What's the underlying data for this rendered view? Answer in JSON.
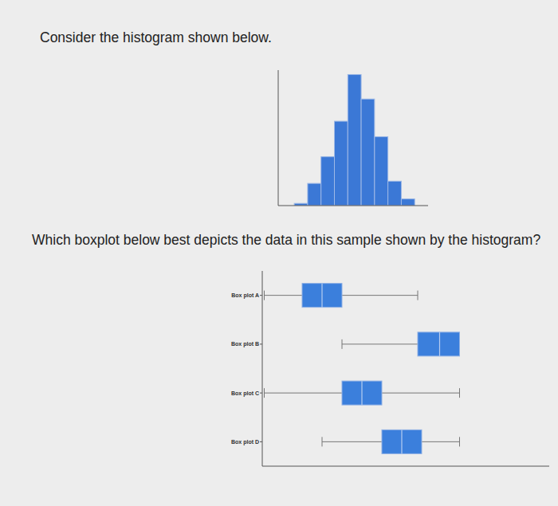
{
  "prompt": "Consider the histogram shown below.",
  "question": "Which boxplot below best depicts the data in this sample shown by the histogram?",
  "chart_data": [
    {
      "type": "histogram",
      "bins": [
        0,
        1,
        2,
        3,
        4,
        5,
        6,
        7,
        8,
        9
      ],
      "counts": [
        1,
        10,
        22,
        38,
        59,
        48,
        31,
        11,
        3
      ],
      "xlim": [
        -1.2,
        10
      ],
      "ylim": [
        0,
        61
      ],
      "color": "#3b78d6",
      "tick_labels": false
    },
    {
      "type": "boxplot",
      "orientation": "horizontal",
      "categories": [
        "Box plot A",
        "Box plot B",
        "Box plot C",
        "Box plot D"
      ],
      "min": [
        0.1,
        4,
        0.1,
        3
      ],
      "q1": [
        2,
        7.8,
        4,
        6
      ],
      "median": [
        3,
        8.9,
        5,
        7
      ],
      "q3": [
        4,
        9.9,
        6,
        8
      ],
      "max": [
        7.8,
        9.9,
        9.9,
        9.9
      ],
      "xlim": [
        0,
        14.4
      ],
      "color": "#3b7fdc",
      "tick_labels": "y"
    }
  ]
}
